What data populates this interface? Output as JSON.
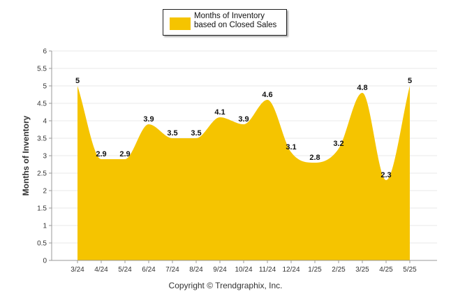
{
  "legend": {
    "label": "Months of Inventory based on Closed Sales"
  },
  "copyright": "Copyright © Trendgraphix, Inc.",
  "colors": {
    "area": "#F5C400",
    "grid": "#e8e8e8",
    "axis": "#333333"
  },
  "chart_data": {
    "type": "area",
    "ylabel": "Months of Inventory",
    "xlabel": "",
    "ylim": [
      0,
      6
    ],
    "yticks": [
      "0",
      "0.5",
      "1",
      "1.5",
      "2",
      "2.5",
      "3",
      "3.5",
      "4",
      "4.5",
      "5",
      "5.5",
      "6"
    ],
    "categories": [
      "3/24",
      "4/24",
      "5/24",
      "6/24",
      "7/24",
      "8/24",
      "9/24",
      "10/24",
      "11/24",
      "12/24",
      "1/25",
      "2/25",
      "3/25",
      "4/25",
      "5/25"
    ],
    "series": [
      {
        "name": "Months of Inventory based on Closed Sales",
        "values": [
          5,
          2.9,
          2.9,
          3.9,
          3.5,
          3.5,
          4.1,
          3.9,
          4.6,
          3.1,
          2.8,
          3.2,
          4.8,
          2.3,
          5
        ],
        "labels": [
          "5",
          "2.9",
          "2.9",
          "3.9",
          "3.5",
          "3.5",
          "4.1",
          "3.9",
          "4.6",
          "3.1",
          "2.8",
          "3.2",
          "4.8",
          "2.3",
          "5"
        ]
      }
    ],
    "grid": true,
    "legend_position": "top-center"
  }
}
